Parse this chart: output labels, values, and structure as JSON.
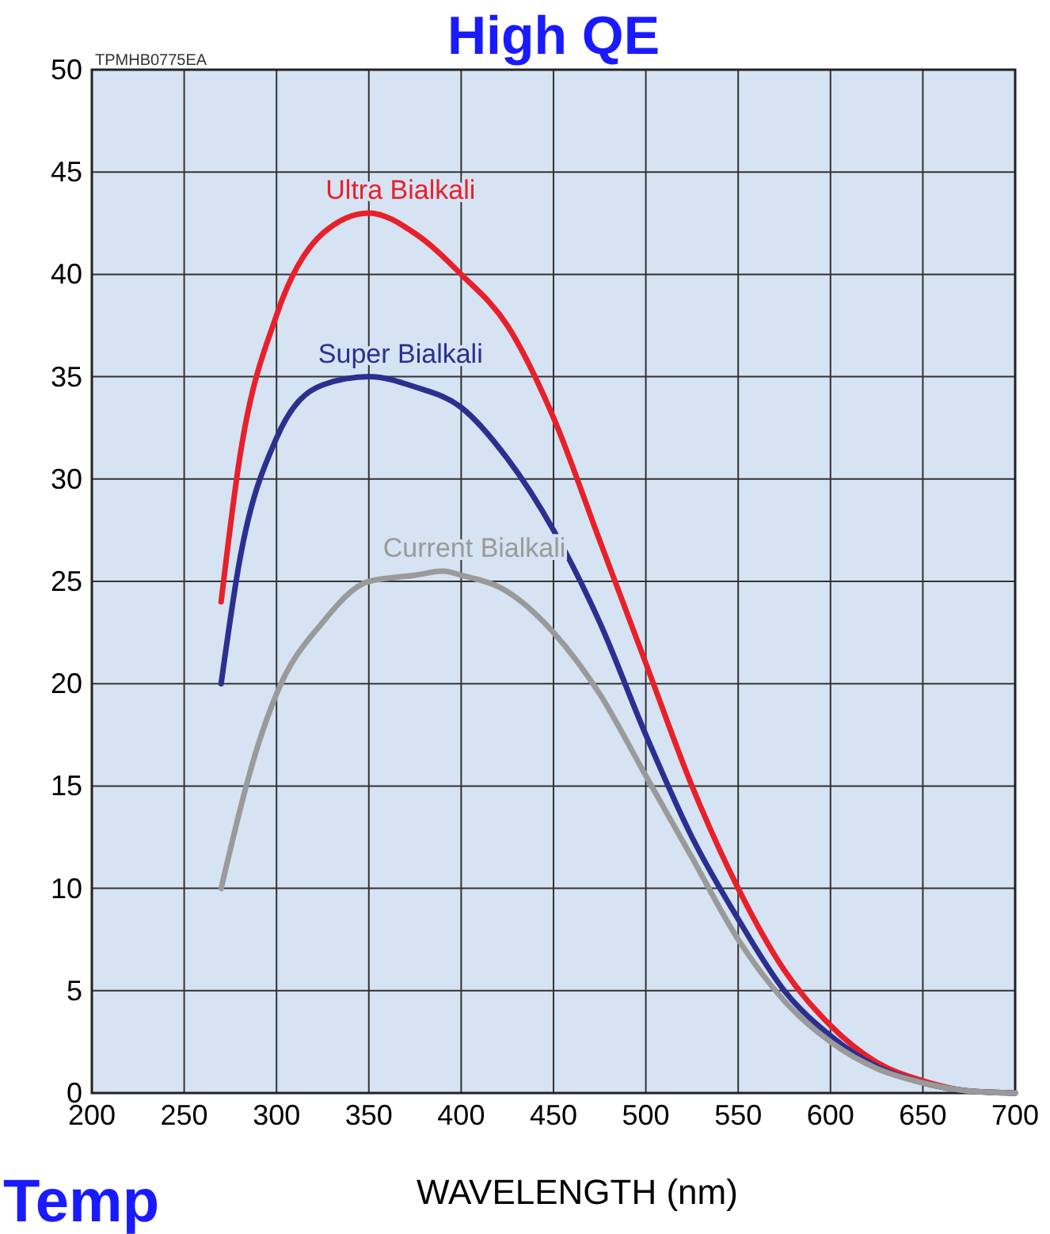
{
  "chart_data": {
    "type": "line",
    "title": "High QE",
    "xlabel": "WAVELENGTH (nm)",
    "annotations": [
      "TPMHB0775EA",
      "Temp"
    ],
    "xlim": [
      200,
      700
    ],
    "xticks": [
      200,
      250,
      300,
      350,
      400,
      450,
      500,
      550,
      600,
      650,
      700
    ],
    "ylim": [
      0,
      50
    ],
    "yticks": [
      0,
      5,
      10,
      15,
      20,
      25,
      30,
      35,
      40,
      45,
      50
    ],
    "grid": true,
    "marker": "none",
    "line_style": "solid",
    "series": [
      {
        "name": "Ultra Bialkali",
        "color": "#e8202a",
        "x": [
          270,
          280,
          300,
          325,
          350,
          375,
          400,
          425,
          450,
          475,
          500,
          525,
          550,
          575,
          600,
          625,
          650,
          675,
          700
        ],
        "values": [
          24,
          31,
          38,
          42,
          43,
          42,
          40,
          37.5,
          33,
          27,
          21,
          15,
          10,
          6,
          3.3,
          1.5,
          0.6,
          0.1,
          0
        ]
      },
      {
        "name": "Super Bialkali",
        "color": "#2b2f8f",
        "x": [
          270,
          280,
          300,
          325,
          350,
          375,
          400,
          425,
          450,
          475,
          500,
          525,
          550,
          575,
          600,
          625,
          650,
          675,
          700
        ],
        "values": [
          20,
          26,
          32,
          34.6,
          35,
          34.5,
          33.5,
          31,
          27.5,
          23,
          17.5,
          12.5,
          8.5,
          5,
          2.8,
          1.3,
          0.5,
          0.1,
          0
        ]
      },
      {
        "name": "Current Bialkali",
        "color": "#9a9a9a",
        "x": [
          270,
          290,
          300,
          325,
          350,
          375,
          390,
          400,
          425,
          450,
          475,
          500,
          525,
          550,
          575,
          600,
          625,
          650,
          675,
          700
        ],
        "values": [
          10,
          17,
          19.5,
          23,
          25,
          25.3,
          25.5,
          25.3,
          24.5,
          22.5,
          19.5,
          15.5,
          11.5,
          7.5,
          4.5,
          2.5,
          1.2,
          0.5,
          0.1,
          0
        ]
      }
    ]
  }
}
